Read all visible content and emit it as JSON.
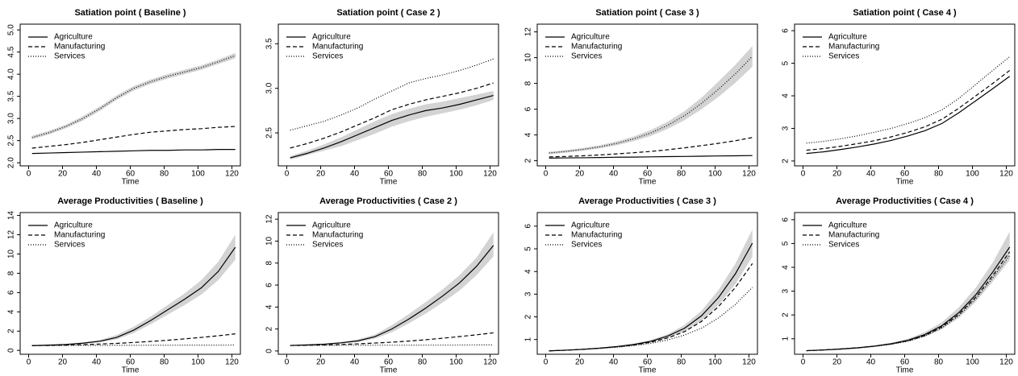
{
  "chart_data": [
    {
      "type": "line",
      "title": "Satiation point ( Baseline )",
      "x_label": "Time",
      "x": [
        2,
        12,
        22,
        32,
        42,
        52,
        62,
        72,
        82,
        92,
        102,
        112,
        122
      ],
      "xlim": [
        -5,
        125
      ],
      "xticks": [
        0,
        20,
        40,
        60,
        80,
        100,
        120
      ],
      "ylim": [
        1.93,
        5.13
      ],
      "yticks": [
        {
          "value": 2,
          "label": "2.0"
        },
        2.5,
        {
          "value": 3,
          "label": "3.0"
        },
        3.5,
        {
          "value": 4,
          "label": "4.0"
        },
        4.5,
        {
          "value": 5,
          "label": "5.0"
        }
      ],
      "legend": "topleft",
      "band_color": "#d3d3d3",
      "series": [
        {
          "name": "Agriculture",
          "color": "#000000",
          "dash": "solid",
          "values": [
            2.21,
            2.22,
            2.23,
            2.24,
            2.25,
            2.26,
            2.27,
            2.28,
            2.28,
            2.29,
            2.29,
            2.3,
            2.3
          ]
        },
        {
          "name": "Manufacturing",
          "color": "#000000",
          "dash": "dashed",
          "values": [
            2.33,
            2.37,
            2.41,
            2.46,
            2.52,
            2.58,
            2.64,
            2.69,
            2.72,
            2.75,
            2.77,
            2.8,
            2.82
          ]
        },
        {
          "name": "Services",
          "color": "#000000",
          "dash": "dotted",
          "values": [
            2.57,
            2.68,
            2.82,
            3.0,
            3.22,
            3.47,
            3.68,
            3.83,
            3.95,
            4.05,
            4.15,
            4.28,
            4.42
          ],
          "lower": [
            2.53,
            2.64,
            2.78,
            2.95,
            3.17,
            3.42,
            3.63,
            3.78,
            3.9,
            4.0,
            4.1,
            4.23,
            4.36
          ],
          "upper": [
            2.61,
            2.72,
            2.86,
            3.05,
            3.27,
            3.52,
            3.73,
            3.88,
            4.0,
            4.1,
            4.2,
            4.33,
            4.48
          ]
        }
      ]
    },
    {
      "type": "line",
      "title": "Satiation point ( Case 2 )",
      "x_label": "Time",
      "x": [
        2,
        12,
        22,
        32,
        42,
        52,
        62,
        72,
        82,
        92,
        102,
        112,
        122
      ],
      "xlim": [
        -5,
        125
      ],
      "xticks": [
        0,
        20,
        40,
        60,
        80,
        100,
        120
      ],
      "ylim": [
        2.13,
        3.72
      ],
      "yticks": [
        2.5,
        {
          "value": 3,
          "label": "3.0"
        },
        3.5
      ],
      "legend": "topleft",
      "band_color": "#d3d3d3",
      "series": [
        {
          "name": "Agriculture",
          "color": "#000000",
          "dash": "solid",
          "values": [
            2.22,
            2.27,
            2.33,
            2.4,
            2.48,
            2.56,
            2.64,
            2.7,
            2.75,
            2.78,
            2.82,
            2.87,
            2.92
          ],
          "lower": [
            2.2,
            2.25,
            2.3,
            2.35,
            2.42,
            2.49,
            2.57,
            2.63,
            2.68,
            2.72,
            2.76,
            2.81,
            2.87
          ],
          "upper": [
            2.24,
            2.3,
            2.37,
            2.45,
            2.54,
            2.63,
            2.71,
            2.77,
            2.82,
            2.85,
            2.89,
            2.93,
            2.97
          ]
        },
        {
          "name": "Manufacturing",
          "color": "#000000",
          "dash": "dashed",
          "values": [
            2.33,
            2.38,
            2.44,
            2.51,
            2.59,
            2.67,
            2.76,
            2.82,
            2.87,
            2.91,
            2.95,
            3.0,
            3.06
          ]
        },
        {
          "name": "Services",
          "color": "#000000",
          "dash": "dotted",
          "values": [
            2.53,
            2.58,
            2.63,
            2.7,
            2.78,
            2.88,
            2.97,
            3.06,
            3.11,
            3.15,
            3.2,
            3.26,
            3.33
          ]
        }
      ]
    },
    {
      "type": "line",
      "title": "Satiation point ( Case 3 )",
      "x_label": "Time",
      "x": [
        2,
        12,
        22,
        32,
        42,
        52,
        62,
        72,
        82,
        92,
        102,
        112,
        122
      ],
      "xlim": [
        -5,
        125
      ],
      "xticks": [
        0,
        20,
        40,
        60,
        80,
        100,
        120
      ],
      "ylim": [
        1.6,
        12.6
      ],
      "yticks": [
        2,
        4,
        6,
        8,
        10,
        12
      ],
      "legend": "topleft",
      "band_color": "#d3d3d3",
      "series": [
        {
          "name": "Agriculture",
          "color": "#000000",
          "dash": "solid",
          "values": [
            2.2,
            2.22,
            2.23,
            2.25,
            2.27,
            2.28,
            2.3,
            2.32,
            2.33,
            2.35,
            2.37,
            2.38,
            2.4
          ]
        },
        {
          "name": "Manufacturing",
          "color": "#000000",
          "dash": "dashed",
          "values": [
            2.3,
            2.33,
            2.38,
            2.45,
            2.53,
            2.62,
            2.72,
            2.85,
            3.0,
            3.17,
            3.35,
            3.55,
            3.8
          ]
        },
        {
          "name": "Services",
          "color": "#000000",
          "dash": "dotted",
          "values": [
            2.6,
            2.72,
            2.88,
            3.08,
            3.35,
            3.7,
            4.15,
            4.75,
            5.5,
            6.45,
            7.55,
            8.75,
            10.1
          ],
          "lower": [
            2.5,
            2.62,
            2.77,
            2.96,
            3.2,
            3.52,
            3.92,
            4.47,
            5.15,
            6.0,
            6.95,
            8.05,
            9.3
          ],
          "upper": [
            2.7,
            2.82,
            2.99,
            3.2,
            3.5,
            3.88,
            4.38,
            5.03,
            5.85,
            6.9,
            8.15,
            9.45,
            10.9
          ]
        }
      ]
    },
    {
      "type": "line",
      "title": "Satiation point ( Case 4 )",
      "x_label": "Time",
      "x": [
        2,
        12,
        22,
        32,
        42,
        52,
        62,
        72,
        82,
        92,
        102,
        112,
        122
      ],
      "xlim": [
        -5,
        125
      ],
      "xticks": [
        0,
        20,
        40,
        60,
        80,
        100,
        120
      ],
      "ylim": [
        1.85,
        6.2
      ],
      "yticks": [
        2,
        3,
        4,
        5,
        6
      ],
      "legend": "topleft",
      "band_color": "#d3d3d3",
      "series": [
        {
          "name": "Agriculture",
          "color": "#000000",
          "dash": "solid",
          "values": [
            2.23,
            2.28,
            2.35,
            2.43,
            2.52,
            2.63,
            2.77,
            2.93,
            3.15,
            3.48,
            3.85,
            4.22,
            4.6
          ]
        },
        {
          "name": "Manufacturing",
          "color": "#000000",
          "dash": "dashed",
          "values": [
            2.33,
            2.38,
            2.45,
            2.53,
            2.62,
            2.74,
            2.88,
            3.05,
            3.28,
            3.62,
            4.0,
            4.38,
            4.78
          ]
        },
        {
          "name": "Services",
          "color": "#000000",
          "dash": "dotted",
          "values": [
            2.55,
            2.6,
            2.68,
            2.77,
            2.88,
            3.0,
            3.15,
            3.33,
            3.57,
            3.92,
            4.35,
            4.78,
            5.2
          ]
        }
      ]
    },
    {
      "type": "line",
      "title": "Average Productivities ( Baseline )",
      "x_label": "Time",
      "x": [
        2,
        12,
        22,
        32,
        42,
        52,
        62,
        72,
        82,
        92,
        102,
        112,
        122
      ],
      "xlim": [
        -5,
        125
      ],
      "xticks": [
        0,
        20,
        40,
        60,
        80,
        100,
        120
      ],
      "ylim": [
        -0.4,
        14.3
      ],
      "yticks": [
        0,
        2,
        4,
        6,
        8,
        10,
        12,
        14
      ],
      "legend": "topleft",
      "band_color": "#d3d3d3",
      "series": [
        {
          "name": "Agriculture",
          "color": "#000000",
          "dash": "solid",
          "values": [
            0.5,
            0.55,
            0.62,
            0.75,
            0.95,
            1.35,
            2.1,
            3.1,
            4.2,
            5.3,
            6.5,
            8.2,
            10.7
          ],
          "lower": [
            0.48,
            0.52,
            0.58,
            0.68,
            0.85,
            1.15,
            1.8,
            2.7,
            3.7,
            4.7,
            5.8,
            7.3,
            9.4
          ],
          "upper": [
            0.52,
            0.58,
            0.67,
            0.83,
            1.08,
            1.6,
            2.45,
            3.5,
            4.7,
            5.9,
            7.3,
            9.2,
            12.0
          ]
        },
        {
          "name": "Manufacturing",
          "color": "#000000",
          "dash": "dashed",
          "values": [
            0.5,
            0.52,
            0.55,
            0.6,
            0.66,
            0.73,
            0.82,
            0.93,
            1.05,
            1.2,
            1.35,
            1.52,
            1.72
          ]
        },
        {
          "name": "Services",
          "color": "#000000",
          "dash": "dotted",
          "values": [
            0.5,
            0.51,
            0.51,
            0.52,
            0.52,
            0.53,
            0.53,
            0.54,
            0.54,
            0.55,
            0.55,
            0.55,
            0.56
          ]
        }
      ]
    },
    {
      "type": "line",
      "title": "Average Productivities ( Case 2 )",
      "x_label": "Time",
      "x": [
        2,
        12,
        22,
        32,
        42,
        52,
        62,
        72,
        82,
        92,
        102,
        112,
        122
      ],
      "xlim": [
        -5,
        125
      ],
      "xticks": [
        0,
        20,
        40,
        60,
        80,
        100,
        120
      ],
      "ylim": [
        -0.3,
        12.6
      ],
      "yticks": [
        0,
        2,
        4,
        6,
        8,
        10,
        12
      ],
      "legend": "topleft",
      "band_color": "#d3d3d3",
      "series": [
        {
          "name": "Agriculture",
          "color": "#000000",
          "dash": "solid",
          "values": [
            0.5,
            0.55,
            0.62,
            0.74,
            0.92,
            1.3,
            2.0,
            2.9,
            3.9,
            5.0,
            6.2,
            7.7,
            9.6
          ],
          "lower": [
            0.48,
            0.52,
            0.58,
            0.67,
            0.82,
            1.12,
            1.7,
            2.5,
            3.4,
            4.4,
            5.5,
            6.9,
            8.6
          ],
          "upper": [
            0.52,
            0.58,
            0.66,
            0.82,
            1.05,
            1.5,
            2.35,
            3.35,
            4.45,
            5.6,
            6.9,
            8.5,
            10.8
          ]
        },
        {
          "name": "Manufacturing",
          "color": "#000000",
          "dash": "dashed",
          "values": [
            0.5,
            0.52,
            0.55,
            0.59,
            0.65,
            0.72,
            0.8,
            0.9,
            1.02,
            1.16,
            1.31,
            1.47,
            1.65
          ]
        },
        {
          "name": "Services",
          "color": "#000000",
          "dash": "dotted",
          "values": [
            0.5,
            0.51,
            0.51,
            0.52,
            0.52,
            0.53,
            0.53,
            0.53,
            0.54,
            0.54,
            0.54,
            0.55,
            0.55
          ]
        }
      ]
    },
    {
      "type": "line",
      "title": "Average Productivities ( Case 3 )",
      "x_label": "Time",
      "x": [
        2,
        12,
        22,
        32,
        42,
        52,
        62,
        72,
        82,
        92,
        102,
        112,
        122
      ],
      "xlim": [
        -5,
        125
      ],
      "xticks": [
        0,
        20,
        40,
        60,
        80,
        100,
        120
      ],
      "ylim": [
        0.35,
        6.6
      ],
      "yticks": [
        1,
        2,
        3,
        4,
        5,
        6
      ],
      "legend": "topleft",
      "band_color": "#d3d3d3",
      "series": [
        {
          "name": "Agriculture",
          "color": "#000000",
          "dash": "solid",
          "values": [
            0.5,
            0.53,
            0.57,
            0.62,
            0.69,
            0.78,
            0.92,
            1.15,
            1.5,
            2.05,
            2.85,
            3.9,
            5.25
          ],
          "lower": [
            0.49,
            0.52,
            0.55,
            0.6,
            0.66,
            0.74,
            0.86,
            1.06,
            1.36,
            1.83,
            2.52,
            3.45,
            4.65
          ],
          "upper": [
            0.51,
            0.54,
            0.59,
            0.64,
            0.72,
            0.82,
            0.98,
            1.24,
            1.64,
            2.27,
            3.18,
            4.35,
            5.85
          ]
        },
        {
          "name": "Manufacturing",
          "color": "#000000",
          "dash": "dashed",
          "values": [
            0.5,
            0.53,
            0.57,
            0.62,
            0.68,
            0.76,
            0.88,
            1.07,
            1.35,
            1.8,
            2.45,
            3.3,
            4.35
          ]
        },
        {
          "name": "Services",
          "color": "#000000",
          "dash": "dotted",
          "values": [
            0.5,
            0.53,
            0.56,
            0.61,
            0.66,
            0.73,
            0.83,
            0.98,
            1.2,
            1.5,
            1.95,
            2.55,
            3.3
          ]
        }
      ]
    },
    {
      "type": "line",
      "title": "Average Productivities ( Case 4 )",
      "x_label": "Time",
      "x": [
        2,
        12,
        22,
        32,
        42,
        52,
        62,
        72,
        82,
        92,
        102,
        112,
        122
      ],
      "xlim": [
        -5,
        125
      ],
      "xticks": [
        0,
        20,
        40,
        60,
        80,
        100,
        120
      ],
      "ylim": [
        0.35,
        6.3
      ],
      "yticks": [
        1,
        2,
        3,
        4,
        5,
        6
      ],
      "legend": "topleft",
      "band_color": "#d3d3d3",
      "series": [
        {
          "name": "Agriculture",
          "color": "#000000",
          "dash": "solid",
          "values": [
            0.5,
            0.53,
            0.57,
            0.62,
            0.69,
            0.79,
            0.94,
            1.18,
            1.55,
            2.1,
            2.85,
            3.8,
            4.85
          ],
          "lower": [
            0.49,
            0.52,
            0.55,
            0.6,
            0.66,
            0.75,
            0.88,
            1.08,
            1.4,
            1.88,
            2.55,
            3.4,
            4.3
          ],
          "upper": [
            0.51,
            0.54,
            0.59,
            0.64,
            0.72,
            0.83,
            1.0,
            1.28,
            1.7,
            2.32,
            3.15,
            4.2,
            5.5
          ]
        },
        {
          "name": "Manufacturing",
          "color": "#000000",
          "dash": "dashed",
          "values": [
            0.5,
            0.53,
            0.57,
            0.62,
            0.69,
            0.78,
            0.92,
            1.14,
            1.5,
            2.03,
            2.75,
            3.65,
            4.65
          ]
        },
        {
          "name": "Services",
          "color": "#000000",
          "dash": "dotted",
          "values": [
            0.5,
            0.53,
            0.56,
            0.61,
            0.68,
            0.77,
            0.9,
            1.12,
            1.46,
            1.97,
            2.68,
            3.55,
            4.5
          ]
        }
      ]
    }
  ]
}
